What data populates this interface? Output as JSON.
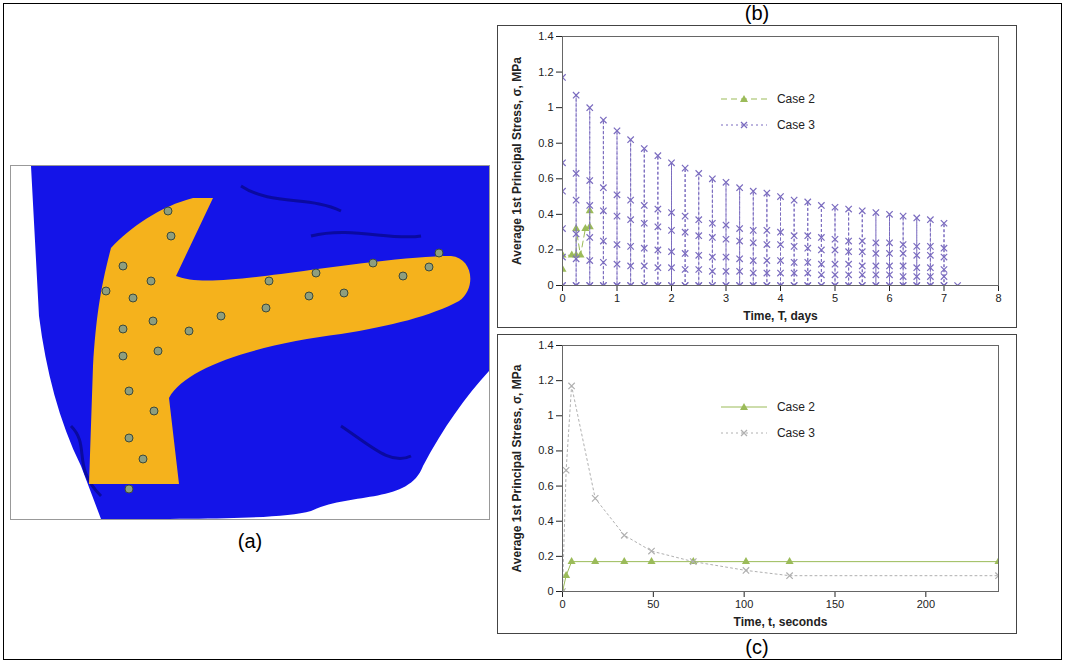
{
  "figure": {
    "image_panel_label": "(a)"
  },
  "chart_data": [
    {
      "type": "scatter",
      "title": "(b)",
      "x_label": "Time, T, days",
      "y_label": "Average 1st Principal Stress, σ, MPa",
      "xlim": [
        0,
        8
      ],
      "xticks": [
        0,
        1,
        2,
        3,
        4,
        5,
        6,
        7,
        8
      ],
      "ylim": [
        0,
        1.4
      ],
      "yticks": [
        0,
        0.2,
        0.4,
        0.6,
        0.8,
        1,
        1.2,
        1.4
      ],
      "grid": false,
      "legend": "top",
      "series": [
        {
          "name": "Case 2",
          "color": "#9bbb59",
          "marker": "triangle",
          "line_style": "dashed",
          "x": [
            0,
            0,
            0.17,
            0.25,
            0.25,
            0.33,
            0.42,
            0.5,
            0.5
          ],
          "values": [
            0.09,
            0.17,
            0.17,
            0.17,
            0.32,
            0.17,
            0.32,
            0.33,
            0.42
          ]
        },
        {
          "name": "Case 3",
          "color": "#7a6bbf",
          "marker": "x",
          "line_style": "dotted",
          "x": [
            0,
            0,
            0,
            0,
            0,
            0,
            0,
            0.25,
            0.25,
            0.25,
            0.25,
            0.25,
            0.25,
            0.25,
            0.5,
            0.5,
            0.5,
            0.5,
            0.5,
            0.5,
            0.5,
            0.75,
            0.75,
            0.75,
            0.75,
            0.75,
            0.75,
            0.75,
            1,
            1,
            1,
            1,
            1,
            1,
            1,
            1.25,
            1.25,
            1.25,
            1.25,
            1.25,
            1.25,
            1.25,
            1.5,
            1.5,
            1.5,
            1.5,
            1.5,
            1.5,
            1.5,
            1.75,
            1.75,
            1.75,
            1.75,
            1.75,
            1.75,
            1.75,
            2,
            2,
            2,
            2,
            2,
            2,
            2,
            2.25,
            2.25,
            2.25,
            2.25,
            2.25,
            2.25,
            2.25,
            2.5,
            2.5,
            2.5,
            2.5,
            2.5,
            2.5,
            2.5,
            2.75,
            2.75,
            2.75,
            2.75,
            2.75,
            2.75,
            2.75,
            3,
            3,
            3,
            3,
            3,
            3,
            3,
            3.25,
            3.25,
            3.25,
            3.25,
            3.25,
            3.25,
            3.25,
            3.5,
            3.5,
            3.5,
            3.5,
            3.5,
            3.5,
            3.5,
            3.75,
            3.75,
            3.75,
            3.75,
            3.75,
            3.75,
            3.75,
            4,
            4,
            4,
            4,
            4,
            4,
            4,
            4.25,
            4.25,
            4.25,
            4.25,
            4.25,
            4.25,
            4.25,
            4.5,
            4.5,
            4.5,
            4.5,
            4.5,
            4.5,
            4.5,
            4.75,
            4.75,
            4.75,
            4.75,
            4.75,
            4.75,
            4.75,
            5,
            5,
            5,
            5,
            5,
            5,
            5,
            5.25,
            5.25,
            5.25,
            5.25,
            5.25,
            5.25,
            5.25,
            5.5,
            5.5,
            5.5,
            5.5,
            5.5,
            5.5,
            5.5,
            5.75,
            5.75,
            5.75,
            5.75,
            5.75,
            5.75,
            5.75,
            6,
            6,
            6,
            6,
            6,
            6,
            6,
            6.25,
            6.25,
            6.25,
            6.25,
            6.25,
            6.25,
            6.25,
            6.5,
            6.5,
            6.5,
            6.5,
            6.5,
            6.5,
            6.5,
            6.75,
            6.75,
            6.75,
            6.75,
            6.75,
            6.75,
            6.75,
            7,
            7,
            7,
            7,
            7,
            7,
            7,
            7.25
          ],
          "values": [
            0,
            0.69,
            1.17,
            0.53,
            0.32,
            0.16,
            0,
            0,
            0.63,
            1.07,
            0.48,
            0.29,
            0.15,
            0,
            0,
            0.59,
            1,
            0.45,
            0.27,
            0.14,
            0,
            0,
            0.55,
            0.93,
            0.42,
            0.25,
            0.13,
            0,
            0,
            0.51,
            0.87,
            0.39,
            0.23,
            0.12,
            0,
            0,
            0.48,
            0.82,
            0.37,
            0.22,
            0.11,
            0,
            0,
            0.45,
            0.77,
            0.35,
            0.21,
            0.11,
            0,
            0,
            0.43,
            0.73,
            0.33,
            0.2,
            0.1,
            0,
            0,
            0.41,
            0.69,
            0.31,
            0.19,
            0.1,
            0,
            0,
            0.39,
            0.66,
            0.3,
            0.18,
            0.09,
            0,
            0,
            0.37,
            0.63,
            0.28,
            0.17,
            0.09,
            0,
            0,
            0.35,
            0.6,
            0.27,
            0.16,
            0.08,
            0,
            0,
            0.34,
            0.58,
            0.26,
            0.16,
            0.08,
            0,
            0,
            0.32,
            0.55,
            0.25,
            0.15,
            0.08,
            0,
            0,
            0.31,
            0.53,
            0.24,
            0.14,
            0.07,
            0,
            0,
            0.31,
            0.52,
            0.23,
            0.14,
            0.07,
            0,
            0,
            0.3,
            0.5,
            0.23,
            0.14,
            0.07,
            0,
            0,
            0.28,
            0.48,
            0.22,
            0.13,
            0.07,
            0,
            0,
            0.28,
            0.47,
            0.21,
            0.13,
            0.07,
            0,
            0,
            0.27,
            0.45,
            0.2,
            0.12,
            0.06,
            0,
            0,
            0.26,
            0.44,
            0.2,
            0.12,
            0.06,
            0,
            0,
            0.25,
            0.43,
            0.19,
            0.12,
            0.06,
            0,
            0,
            0.25,
            0.42,
            0.19,
            0.11,
            0.06,
            0,
            0,
            0.24,
            0.41,
            0.18,
            0.11,
            0.06,
            0,
            0,
            0.24,
            0.4,
            0.18,
            0.11,
            0.06,
            0,
            0,
            0.23,
            0.39,
            0.18,
            0.11,
            0.05,
            0,
            0,
            0.22,
            0.38,
            0.17,
            0.1,
            0.05,
            0,
            0,
            0.22,
            0.37,
            0.17,
            0.1,
            0.05,
            0,
            0,
            0.21,
            0.35,
            0.16,
            0.09,
            0.05,
            0,
            0
          ]
        }
      ]
    },
    {
      "type": "line",
      "title": "(c)",
      "x_label": "Time, t, seconds",
      "y_label": "Average 1st Principal Stress, σ, MPa",
      "xlim": [
        0,
        240
      ],
      "xticks": [
        0,
        50,
        100,
        150,
        200
      ],
      "ylim": [
        0,
        1.4
      ],
      "yticks": [
        0,
        0.2,
        0.4,
        0.6,
        0.8,
        1,
        1.2,
        1.4
      ],
      "grid": false,
      "legend": "top",
      "series": [
        {
          "name": "Case 2",
          "color": "#9bbb59",
          "marker": "triangle",
          "line_style": "solid",
          "x": [
            0,
            2,
            5,
            18,
            34,
            49,
            72,
            101,
            125,
            240
          ],
          "values": [
            0,
            0.09,
            0.17,
            0.17,
            0.17,
            0.17,
            0.17,
            0.17,
            0.17,
            0.17
          ]
        },
        {
          "name": "Case 3",
          "color": "#b0b0b0",
          "marker": "x",
          "line_style": "dotted",
          "x": [
            0,
            2,
            5,
            18,
            34,
            49,
            72,
            101,
            125,
            240
          ],
          "values": [
            0,
            0.69,
            1.17,
            0.53,
            0.32,
            0.23,
            0.17,
            0.12,
            0.09,
            0.09
          ]
        }
      ]
    }
  ]
}
